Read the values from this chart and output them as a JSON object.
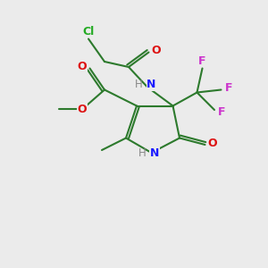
{
  "bg": "#ebebeb",
  "bc": "#2d7a2d",
  "lw": 1.5,
  "N_color": "#1a1aff",
  "O_color": "#dd1111",
  "F_color": "#cc33cc",
  "Cl_color": "#22aa22",
  "H_color": "#888888",
  "fs": 9.0,
  "figsize": [
    3.0,
    3.0
  ],
  "dpi": 100,
  "xlim": [
    0,
    10
  ],
  "ylim": [
    0,
    10
  ]
}
